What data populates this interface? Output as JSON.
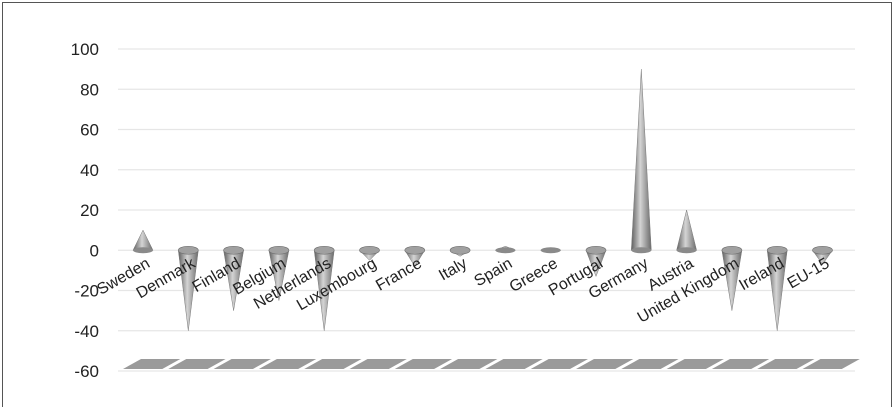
{
  "chart_data": {
    "type": "bar",
    "style": "3d-cone",
    "categories": [
      "Sweden",
      "Denmark",
      "Finland",
      "Belgium",
      "Netherlands",
      "Luxembourg",
      "France",
      "Italy",
      "Spain",
      "Greece",
      "Portugal",
      "Germany",
      "Austria",
      "United Kingdom",
      "Ireland",
      "EU-15"
    ],
    "values": [
      10,
      -40,
      -30,
      -25,
      -40,
      -5,
      -8,
      -3,
      2,
      1,
      -13,
      90,
      20,
      -30,
      -40,
      -7
    ],
    "y_ticks": [
      "100",
      "80",
      "60",
      "40",
      "20",
      "0",
      "-20",
      "-40",
      "-60"
    ],
    "ylim": [
      -60,
      100
    ],
    "grid": true,
    "title": "",
    "xlabel": "",
    "ylabel": "",
    "colors": {
      "cone": "#8c8c8c",
      "cone_light": "#cfcfcf",
      "cone_dark": "#5e5e5e",
      "floor": "#9a9a9a",
      "grid": "#e6e6e6"
    }
  }
}
